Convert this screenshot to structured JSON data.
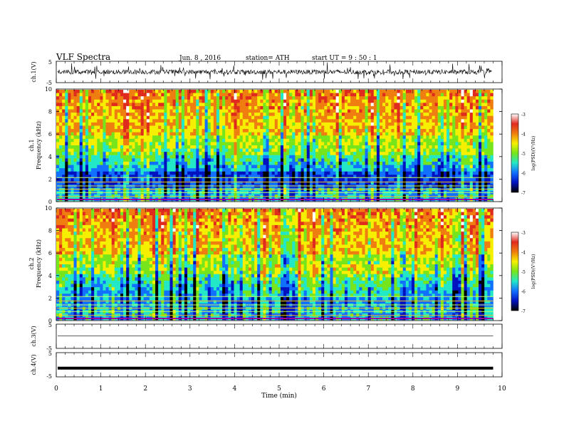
{
  "header": {
    "title": "VLF  Spectra",
    "date": "Jun. 8 , 2016",
    "station": "station= ATH",
    "start": "start  UT =  9 : 50 : 1"
  },
  "chart_data": {
    "type": "heatmap",
    "panels": [
      {
        "name": "ch.1(V)",
        "kind": "waveform",
        "ylim": [
          -5,
          5
        ],
        "yticks": [
          "5",
          "-5"
        ],
        "level": 0
      },
      {
        "name": "ch.1",
        "kind": "spectrogram",
        "ylabel": "Frequency (kHz)",
        "ylim": [
          0,
          10
        ],
        "yticks": [
          "0",
          "2",
          "4",
          "6",
          "8",
          "10"
        ],
        "colorbar": {
          "label": "log(PSD)(V²/Hz)",
          "range": [
            -7,
            -3
          ],
          "ticks": [
            "-3",
            "-4",
            "-5",
            "-6",
            "-7"
          ]
        }
      },
      {
        "name": "ch.2",
        "kind": "spectrogram",
        "ylabel": "Frequency (kHz)",
        "ylim": [
          0,
          10
        ],
        "yticks": [
          "0",
          "2",
          "4",
          "6",
          "8",
          "10"
        ],
        "colorbar": {
          "label": "log(PSD)(V²/Hz)",
          "range": [
            -7,
            -3
          ],
          "ticks": [
            "-3",
            "-4",
            "-5",
            "-6",
            "-7"
          ]
        }
      },
      {
        "name": "ch.3(V)",
        "kind": "waveform",
        "ylim": [
          -5,
          5
        ],
        "yticks": [
          "5",
          "-5"
        ],
        "level": 0.1
      },
      {
        "name": "ch.4(V)",
        "kind": "waveform",
        "ylim": [
          -5,
          5
        ],
        "yticks": [
          "5",
          "-5"
        ],
        "level": -1.4
      }
    ],
    "x": {
      "label": "Time  (min)",
      "range": [
        0,
        10
      ],
      "ticks": [
        "0",
        "1",
        "2",
        "3",
        "4",
        "5",
        "6",
        "7",
        "8",
        "9",
        "10"
      ],
      "data_end": 9.8
    },
    "colormap": [
      "#ffffff",
      "#e02a1e",
      "#f07d10",
      "#f6f000",
      "#76e51c",
      "#23e8c8",
      "#1270ff",
      "#0012c0",
      "#000000"
    ]
  }
}
